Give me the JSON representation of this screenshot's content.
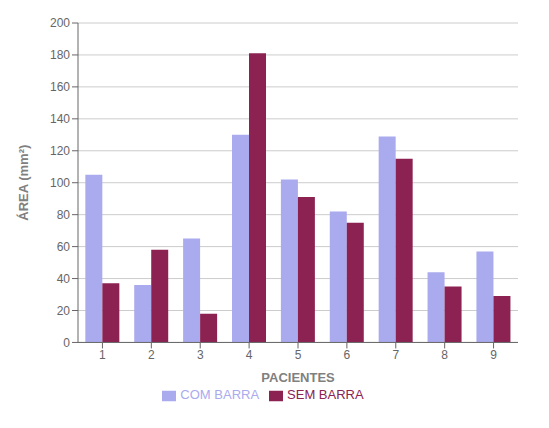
{
  "chart_data": {
    "type": "bar",
    "categories": [
      "1",
      "2",
      "3",
      "4",
      "5",
      "6",
      "7",
      "8",
      "9"
    ],
    "series": [
      {
        "name": "COM BARRA",
        "color": "#aaaaee",
        "values": [
          105,
          36,
          65,
          130,
          102,
          82,
          129,
          44,
          57
        ]
      },
      {
        "name": "SEM BARRA",
        "color": "#8b2252",
        "values": [
          37,
          58,
          18,
          181,
          91,
          75,
          115,
          35,
          29
        ]
      }
    ],
    "xlabel": "PACIENTES",
    "ylabel": "ÁREA (mm²)",
    "ylim": [
      0,
      200
    ],
    "yticks": [
      0,
      20,
      40,
      60,
      80,
      100,
      120,
      140,
      160,
      180,
      200
    ],
    "grid": true,
    "legend": "bottom"
  }
}
